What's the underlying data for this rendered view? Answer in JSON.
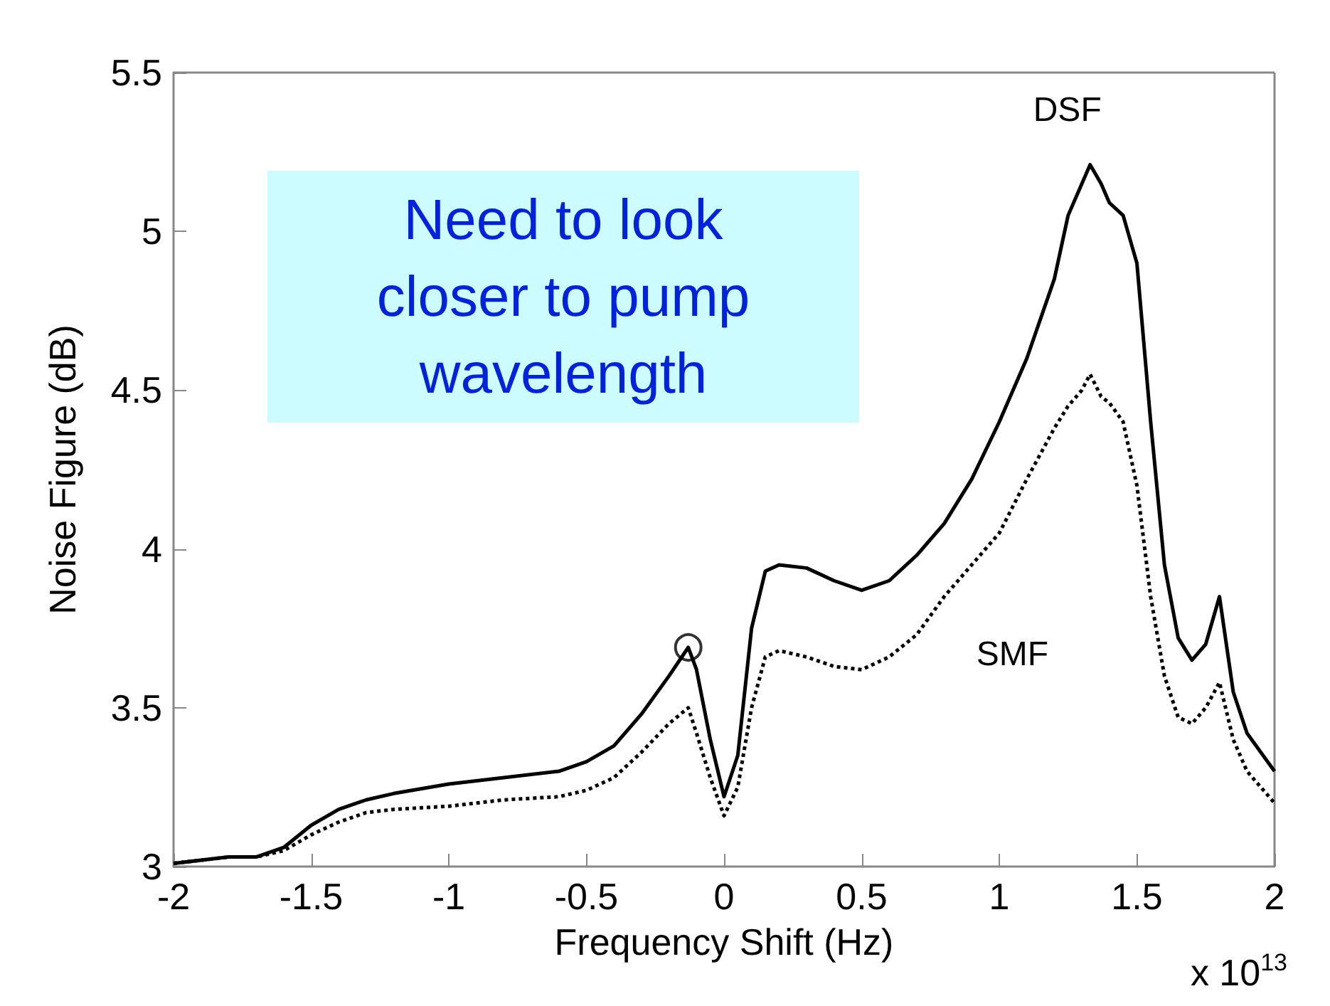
{
  "chart_data": {
    "type": "line",
    "xlabel": "Frequency Shift (Hz)",
    "ylabel": "Noise Figure (dB)",
    "xlim": [
      -2,
      2
    ],
    "xticks": [
      -2,
      -1.5,
      -1,
      -0.5,
      0,
      0.5,
      1,
      1.5,
      2
    ],
    "ylim": [
      3,
      5.5
    ],
    "yticks": [
      3,
      3.5,
      4,
      4.5,
      5,
      5.5
    ],
    "grid": false,
    "legend": false,
    "marker": "none",
    "annotations": [
      "Need to look closer to pump wavelength",
      "x 10$^{13}$"
    ],
    "series": [
      {
        "name": "DSF",
        "color": "#000000",
        "line_style": "solid",
        "x": [
          -2,
          -1.8,
          -1.7,
          -1.6,
          -1.5,
          -1.4,
          -1.3,
          -1.2,
          -1.0,
          -0.8,
          -0.6,
          -0.5,
          -0.4,
          -0.3,
          -0.2,
          -0.13,
          -0.1,
          -0.05,
          0,
          0.05,
          0.1,
          0.15,
          0.2,
          0.3,
          0.4,
          0.5,
          0.6,
          0.7,
          0.8,
          0.9,
          1.0,
          1.1,
          1.2,
          1.25,
          1.3,
          1.33,
          1.37,
          1.4,
          1.45,
          1.5,
          1.55,
          1.6,
          1.65,
          1.7,
          1.75,
          1.8,
          1.85,
          1.9,
          2.0
        ],
        "values": [
          3.01,
          3.03,
          3.03,
          3.06,
          3.13,
          3.18,
          3.21,
          3.23,
          3.26,
          3.28,
          3.3,
          3.33,
          3.38,
          3.48,
          3.6,
          3.69,
          3.62,
          3.4,
          3.22,
          3.35,
          3.75,
          3.93,
          3.95,
          3.94,
          3.9,
          3.87,
          3.9,
          3.98,
          4.08,
          4.22,
          4.4,
          4.6,
          4.85,
          5.05,
          5.15,
          5.21,
          5.15,
          5.09,
          5.05,
          4.9,
          4.4,
          3.95,
          3.72,
          3.65,
          3.7,
          3.85,
          3.55,
          3.42,
          3.3
        ]
      },
      {
        "name": "SMF",
        "color": "#000000",
        "line_style": "dotted",
        "x": [
          -2,
          -1.8,
          -1.7,
          -1.6,
          -1.5,
          -1.4,
          -1.3,
          -1.2,
          -1.0,
          -0.8,
          -0.6,
          -0.5,
          -0.4,
          -0.3,
          -0.2,
          -0.13,
          -0.1,
          -0.05,
          0,
          0.05,
          0.1,
          0.15,
          0.2,
          0.3,
          0.4,
          0.5,
          0.6,
          0.7,
          0.8,
          0.9,
          1.0,
          1.1,
          1.2,
          1.25,
          1.3,
          1.33,
          1.37,
          1.4,
          1.45,
          1.5,
          1.55,
          1.6,
          1.65,
          1.7,
          1.75,
          1.8,
          1.85,
          1.9,
          2.0
        ],
        "values": [
          3.01,
          3.03,
          3.03,
          3.05,
          3.1,
          3.14,
          3.17,
          3.18,
          3.19,
          3.21,
          3.22,
          3.24,
          3.28,
          3.36,
          3.45,
          3.5,
          3.42,
          3.28,
          3.16,
          3.25,
          3.5,
          3.66,
          3.68,
          3.66,
          3.63,
          3.62,
          3.66,
          3.73,
          3.85,
          3.95,
          4.05,
          4.22,
          4.38,
          4.45,
          4.5,
          4.55,
          4.48,
          4.46,
          4.4,
          4.2,
          3.85,
          3.6,
          3.47,
          3.45,
          3.5,
          3.58,
          3.4,
          3.3,
          3.2
        ]
      },
      {
        "type": "scatter",
        "marker": "circle",
        "color": "#000000",
        "x": [
          -0.13
        ],
        "values": [
          3.69
        ]
      }
    ]
  }
}
